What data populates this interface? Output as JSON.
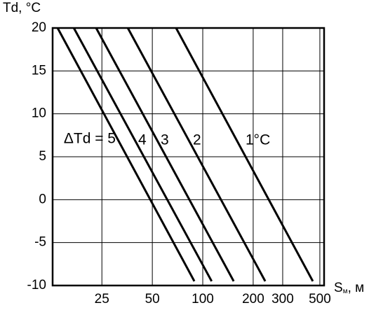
{
  "chart_data": {
    "type": "line",
    "y_label": "Td, °C",
    "x_label": "S",
    "x_label_sub": "м",
    "x_label_unit": ", м",
    "x_log": true,
    "grid": true,
    "color": "#000000",
    "xlim": [
      12.7,
      530
    ],
    "xticks": [
      25,
      50,
      100,
      200,
      300,
      500
    ],
    "ylim": [
      -10,
      20
    ],
    "yticks": [
      20,
      15,
      10,
      5,
      0,
      -5,
      -10
    ],
    "series": [
      {
        "name": "ΔTd = 5",
        "x": [
          13.6,
          89.1
        ],
        "values": [
          20,
          -9.5
        ]
      },
      {
        "name": "4",
        "x": [
          17.0,
          113
        ],
        "values": [
          20,
          -9.5
        ]
      },
      {
        "name": "3",
        "x": [
          23.1,
          153
        ],
        "values": [
          20,
          -9.5
        ]
      },
      {
        "name": "2",
        "x": [
          35.7,
          236
        ],
        "values": [
          20,
          -9.5
        ]
      },
      {
        "name": "1°C",
        "x": [
          69.3,
          454
        ],
        "values": [
          20,
          -9.5
        ]
      }
    ]
  }
}
